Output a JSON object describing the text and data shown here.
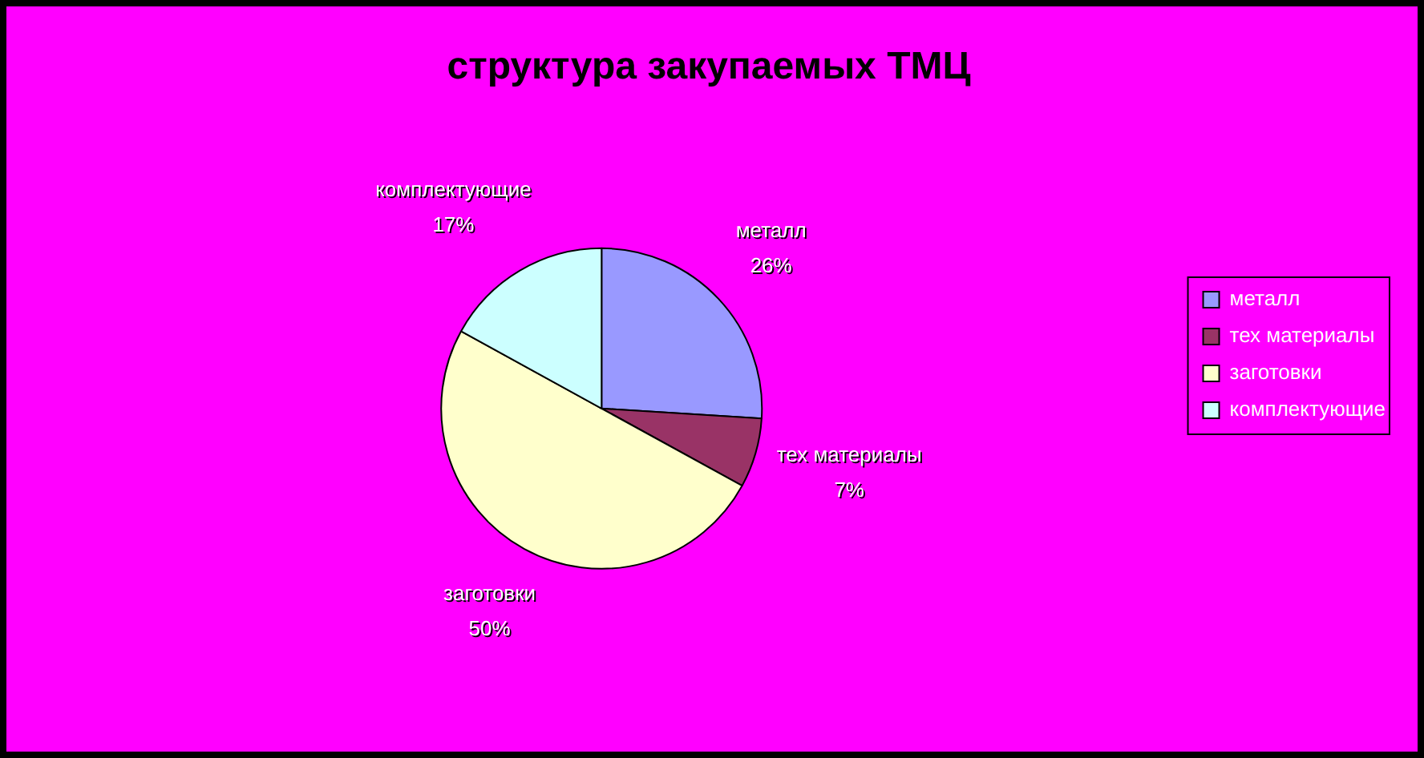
{
  "chart_data": {
    "type": "pie",
    "title": "структура закупаемых ТМЦ",
    "categories": [
      "металл",
      "тех материалы",
      "заготовки",
      "комплектующие"
    ],
    "values": [
      26,
      7,
      50,
      17
    ],
    "value_labels": [
      "26%",
      "7%",
      "50%",
      "17%"
    ],
    "colors": [
      "#9999ff",
      "#993366",
      "#ffffcc",
      "#ccffff"
    ],
    "legend": "right"
  }
}
